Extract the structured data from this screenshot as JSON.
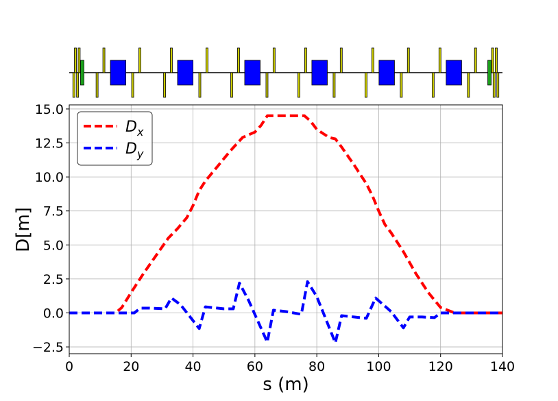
{
  "lattice": {
    "s_range": [
      0,
      140
    ],
    "dipole_color": "#0000ff",
    "quad_color": "#cccc00",
    "corrector_color": "#1a9e1a",
    "elements": [
      {
        "type": "quad",
        "s": 1.5,
        "side": "down"
      },
      {
        "type": "quad",
        "s": 2.0,
        "side": "up"
      },
      {
        "type": "quad",
        "s": 2.7,
        "side": "down"
      },
      {
        "type": "quad",
        "s": 3.2,
        "side": "up"
      },
      {
        "type": "corrector",
        "s": 4.2,
        "side": "both"
      },
      {
        "type": "quad",
        "s": 9.0,
        "side": "down"
      },
      {
        "type": "quad",
        "s": 11.2,
        "side": "up"
      },
      {
        "type": "dipole",
        "s_start": 13.3,
        "s_end": 18.3
      },
      {
        "type": "quad",
        "s": 20.5,
        "side": "down"
      },
      {
        "type": "quad",
        "s": 22.8,
        "side": "up"
      },
      {
        "type": "quad",
        "s": 30.8,
        "side": "down"
      },
      {
        "type": "quad",
        "s": 33.0,
        "side": "up"
      },
      {
        "type": "dipole",
        "s_start": 35.0,
        "s_end": 40.0
      },
      {
        "type": "quad",
        "s": 42.2,
        "side": "down"
      },
      {
        "type": "quad",
        "s": 44.5,
        "side": "up"
      },
      {
        "type": "quad",
        "s": 52.5,
        "side": "down"
      },
      {
        "type": "quad",
        "s": 54.7,
        "side": "up"
      },
      {
        "type": "dipole",
        "s_start": 56.7,
        "s_end": 61.7
      },
      {
        "type": "quad",
        "s": 63.9,
        "side": "down"
      },
      {
        "type": "quad",
        "s": 66.2,
        "side": "up"
      },
      {
        "type": "quad",
        "s": 74.2,
        "side": "down"
      },
      {
        "type": "quad",
        "s": 76.4,
        "side": "up"
      },
      {
        "type": "dipole",
        "s_start": 78.4,
        "s_end": 83.4
      },
      {
        "type": "quad",
        "s": 85.6,
        "side": "down"
      },
      {
        "type": "quad",
        "s": 87.9,
        "side": "up"
      },
      {
        "type": "quad",
        "s": 95.9,
        "side": "down"
      },
      {
        "type": "quad",
        "s": 98.1,
        "side": "up"
      },
      {
        "type": "dipole",
        "s_start": 100.1,
        "s_end": 105.1
      },
      {
        "type": "quad",
        "s": 107.3,
        "side": "down"
      },
      {
        "type": "quad",
        "s": 109.6,
        "side": "up"
      },
      {
        "type": "quad",
        "s": 117.6,
        "side": "down"
      },
      {
        "type": "quad",
        "s": 119.8,
        "side": "up"
      },
      {
        "type": "dipole",
        "s_start": 121.8,
        "s_end": 126.8
      },
      {
        "type": "quad",
        "s": 129.0,
        "side": "down"
      },
      {
        "type": "quad",
        "s": 131.3,
        "side": "up"
      },
      {
        "type": "corrector",
        "s": 135.8,
        "side": "both"
      },
      {
        "type": "quad",
        "s": 136.8,
        "side": "up"
      },
      {
        "type": "quad",
        "s": 137.3,
        "side": "down"
      },
      {
        "type": "quad",
        "s": 138.0,
        "side": "up"
      },
      {
        "type": "quad",
        "s": 138.5,
        "side": "down"
      }
    ]
  },
  "chart_data": {
    "type": "line",
    "title": "",
    "xlabel": "s (m)",
    "ylabel": "D[m]",
    "xlim": [
      0,
      140
    ],
    "ylim": [
      -3.0,
      15.3
    ],
    "xticks": [
      0,
      20,
      40,
      60,
      80,
      100,
      120,
      140
    ],
    "xtick_labels": [
      "0",
      "20",
      "40",
      "60",
      "80",
      "100",
      "120",
      "140"
    ],
    "yticks": [
      -2.5,
      0.0,
      2.5,
      5.0,
      7.5,
      10.0,
      12.5,
      15.0
    ],
    "ytick_labels": [
      "−2.5",
      "0.0",
      "2.5",
      "5.0",
      "7.5",
      "10.0",
      "12.5",
      "15.0"
    ],
    "grid": true,
    "legend_position": "upper-left",
    "series": [
      {
        "name": "D",
        "subscript": "x",
        "color": "#ff0000",
        "line_style": "dashed",
        "x": [
          0,
          15,
          17,
          20,
          24,
          28,
          32,
          35,
          38,
          40,
          42,
          44,
          48,
          52,
          56,
          58,
          60,
          62,
          64,
          66,
          70,
          74,
          76,
          78,
          80,
          84,
          86,
          88,
          92,
          96,
          98,
          100,
          102,
          104,
          108,
          112,
          116,
          120,
          124,
          125,
          130,
          140
        ],
        "values": [
          0,
          0,
          0.4,
          1.5,
          2.9,
          4.2,
          5.5,
          6.2,
          7.0,
          7.9,
          9.0,
          9.7,
          10.8,
          11.9,
          12.9,
          13.1,
          13.3,
          13.8,
          14.5,
          14.5,
          14.5,
          14.5,
          14.5,
          14.1,
          13.5,
          12.9,
          12.8,
          12.2,
          10.9,
          9.5,
          8.6,
          7.5,
          6.5,
          5.9,
          4.5,
          2.9,
          1.5,
          0.4,
          0.05,
          0,
          0,
          0
        ]
      },
      {
        "name": "D",
        "subscript": "y",
        "color": "#0000ff",
        "line_style": "dashed",
        "x": [
          0,
          16,
          21,
          23,
          26,
          31,
          33,
          36,
          42,
          44,
          46,
          50,
          53,
          55,
          58,
          64,
          66,
          70,
          75,
          77,
          80,
          86,
          88,
          92,
          96,
          99,
          101,
          104,
          108,
          110,
          114,
          118,
          120,
          123,
          130,
          140
        ],
        "values": [
          0,
          0,
          0,
          0.35,
          0.35,
          0.3,
          1.1,
          0.6,
          -1.15,
          0.45,
          0.4,
          0.3,
          0.3,
          2.2,
          0.9,
          -2.15,
          0.2,
          0.1,
          -0.1,
          2.3,
          1.2,
          -2.2,
          -0.2,
          -0.3,
          -0.4,
          1.1,
          0.7,
          0.1,
          -1.1,
          -0.3,
          -0.3,
          -0.35,
          0,
          0,
          0,
          0
        ]
      }
    ]
  }
}
